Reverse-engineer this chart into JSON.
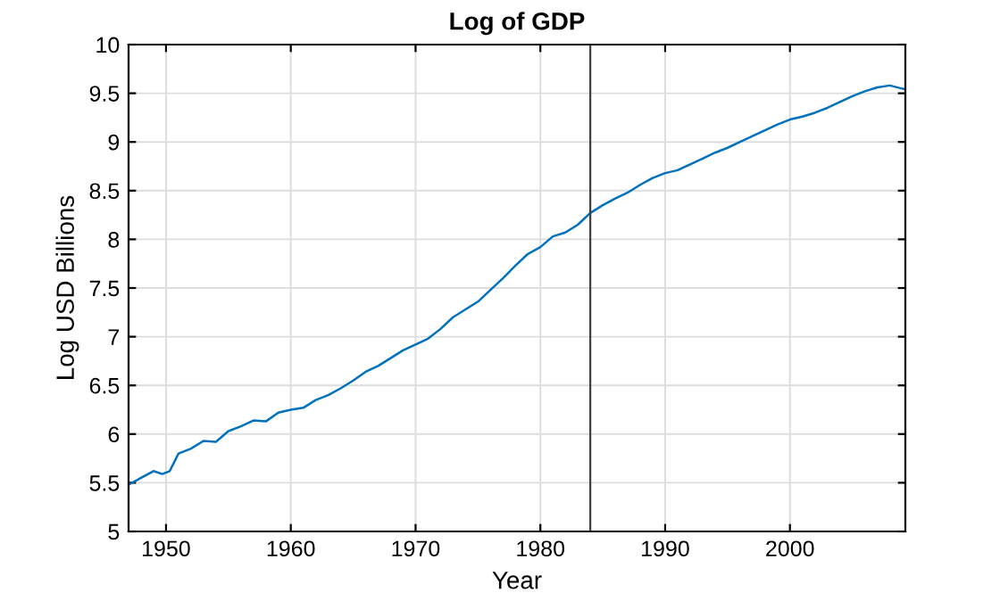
{
  "chart_data": {
    "type": "line",
    "title": "Log of GDP",
    "xlabel": "Year",
    "ylabel": "Log USD Billions",
    "x": [
      1947,
      1948,
      1949,
      1949.7,
      1950.3,
      1951,
      1952,
      1953,
      1954,
      1955,
      1956,
      1957,
      1958,
      1959,
      1960,
      1961,
      1962,
      1963,
      1964,
      1965,
      1966,
      1967,
      1968,
      1969,
      1970,
      1971,
      1972,
      1973,
      1974,
      1975,
      1976,
      1977,
      1978,
      1979,
      1980,
      1981,
      1982,
      1983,
      1984,
      1985,
      1986,
      1987,
      1988,
      1989,
      1990,
      1991,
      1992,
      1993,
      1994,
      1995,
      1996,
      1997,
      1998,
      1999,
      2000,
      2001,
      2002,
      2003,
      2004,
      2005,
      2006,
      2007,
      2008,
      2009.25
    ],
    "series": [
      {
        "color": "#0072bd",
        "values": [
          5.48,
          5.55,
          5.62,
          5.59,
          5.62,
          5.8,
          5.85,
          5.93,
          5.92,
          6.03,
          6.08,
          6.14,
          6.13,
          6.22,
          6.25,
          6.27,
          6.35,
          6.4,
          6.47,
          6.55,
          6.64,
          6.7,
          6.78,
          6.86,
          6.92,
          6.98,
          7.08,
          7.2,
          7.28,
          7.36,
          7.48,
          7.6,
          7.73,
          7.85,
          7.92,
          8.03,
          8.07,
          8.15,
          8.27,
          8.35,
          8.42,
          8.48,
          8.56,
          8.63,
          8.68,
          8.71,
          8.77,
          8.83,
          8.89,
          8.94,
          9.0,
          9.06,
          9.12,
          9.18,
          9.23,
          9.26,
          9.3,
          9.35,
          9.41,
          9.47,
          9.52,
          9.56,
          9.58,
          9.54
        ]
      }
    ],
    "xlim": [
      1947,
      2009.25
    ],
    "ylim": [
      5,
      10
    ],
    "xticks": [
      1950,
      1960,
      1970,
      1980,
      1990,
      2000
    ],
    "yticks": [
      5,
      5.5,
      6,
      6.5,
      7,
      7.5,
      8,
      8.5,
      9,
      9.5,
      10
    ],
    "ref_lines": [
      {
        "axis": "x",
        "value": 1984,
        "color": "#404040"
      }
    ],
    "grid": true,
    "line_style": "solid"
  }
}
